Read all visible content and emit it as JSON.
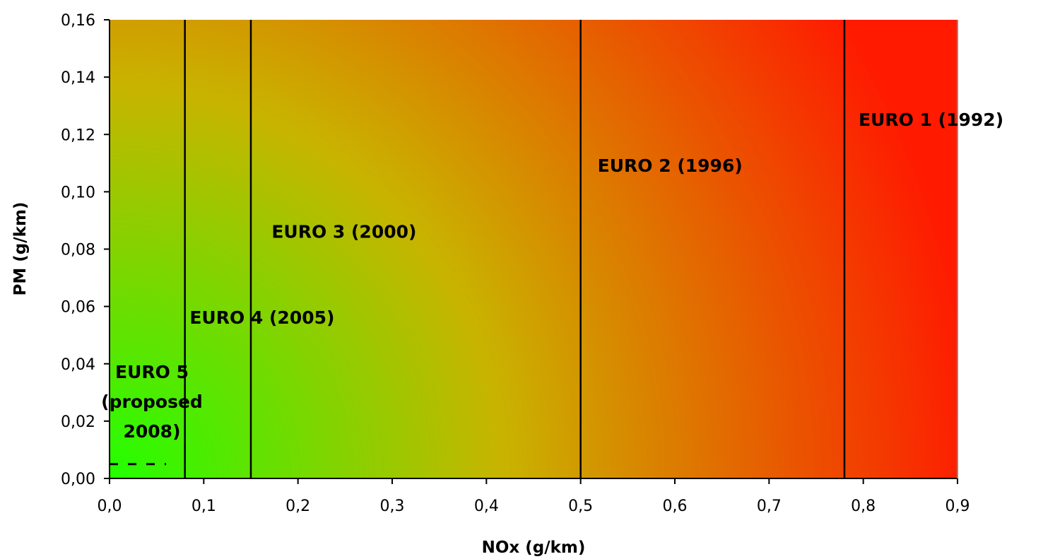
{
  "chart_data": {
    "type": "area",
    "xlabel": "NOx (g/km)",
    "ylabel": "PM (g/km)",
    "xlim": [
      0,
      0.9
    ],
    "ylim": [
      0,
      0.16
    ],
    "x_ticks": [
      "0,0",
      "0,1",
      "0,2",
      "0,3",
      "0,4",
      "0,5",
      "0,6",
      "0,7",
      "0,8",
      "0,9"
    ],
    "y_ticks": [
      "0,00",
      "0,02",
      "0,04",
      "0,06",
      "0,08",
      "0,10",
      "0,12",
      "0,14",
      "0,16"
    ],
    "background_gradient": {
      "low": "#22ff00",
      "mid": "#c8b400",
      "high": "#ff1a00"
    },
    "standards": [
      {
        "label": "EURO 1 (1992)",
        "nox_limit": 0.78,
        "label_x": 0.795,
        "label_y": 0.123
      },
      {
        "label": "EURO 2 (1996)",
        "nox_limit": 0.5,
        "label_x": 0.518,
        "label_y": 0.107
      },
      {
        "label": "EURO 3 (2000)",
        "nox_limit": 0.15,
        "label_x": 0.172,
        "label_y": 0.084
      },
      {
        "label": "EURO 4 (2005)",
        "nox_limit": 0.08,
        "label_x": 0.085,
        "label_y": 0.054
      },
      {
        "label_lines": [
          "EURO 5",
          "(proposed",
          "2008)"
        ],
        "nox_limit": 0.06,
        "pm_limit": 0.005,
        "label_x": 0.045,
        "label_y": 0.035,
        "dashed": true
      }
    ]
  }
}
